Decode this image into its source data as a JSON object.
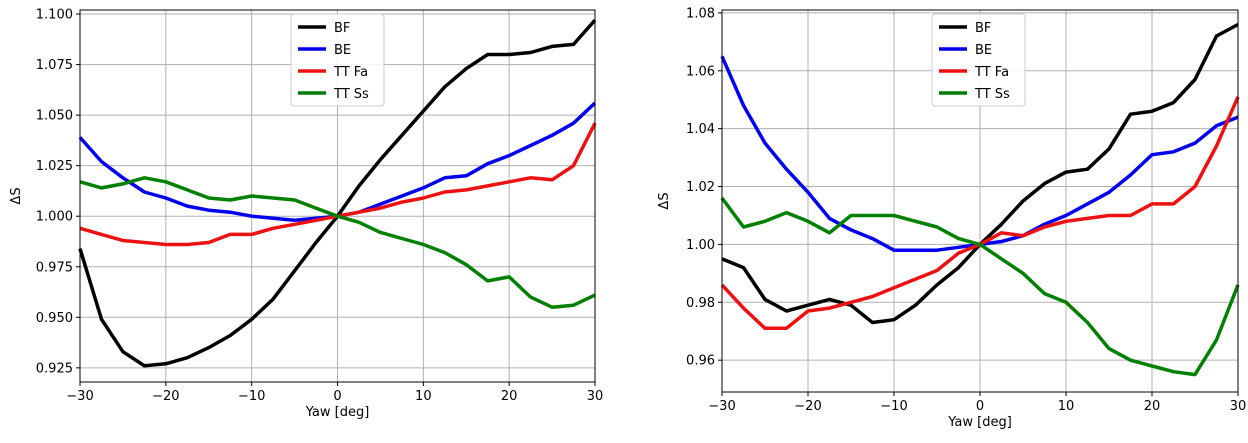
{
  "chart_data": [
    {
      "type": "line",
      "xlabel": "Yaw [deg]",
      "ylabel": "ΔS",
      "xlim": [
        -30,
        30
      ],
      "ylim": [
        0.918,
        1.102
      ],
      "xticks": [
        -30,
        -20,
        -10,
        0,
        10,
        20,
        30
      ],
      "xtick_labels": [
        "−30",
        "−20",
        "−10",
        "0",
        "10",
        "20",
        "30"
      ],
      "yticks": [
        0.925,
        0.95,
        0.975,
        1.0,
        1.025,
        1.05,
        1.075,
        1.1
      ],
      "ytick_labels": [
        "0.925",
        "0.950",
        "0.975",
        "1.000",
        "1.025",
        "1.050",
        "1.075",
        "1.100"
      ],
      "grid": true,
      "legend_position": "top-center",
      "x": [
        -30,
        -27.5,
        -25,
        -22.5,
        -20,
        -17.5,
        -15,
        -12.5,
        -10,
        -7.5,
        -5,
        -2.5,
        0,
        2.5,
        5,
        7.5,
        10,
        12.5,
        15,
        17.5,
        20,
        22.5,
        25,
        27.5,
        30
      ],
      "series": [
        {
          "name": "BF",
          "color": "#000000",
          "values": [
            0.984,
            0.949,
            0.933,
            0.926,
            0.927,
            0.93,
            0.935,
            0.941,
            0.949,
            0.959,
            0.973,
            0.987,
            1.0,
            1.015,
            1.028,
            1.04,
            1.052,
            1.064,
            1.073,
            1.08,
            1.08,
            1.081,
            1.084,
            1.085,
            1.097
          ]
        },
        {
          "name": "BE",
          "color": "#0000ee",
          "values": [
            1.039,
            1.027,
            1.019,
            1.012,
            1.009,
            1.005,
            1.003,
            1.002,
            1.0,
            0.999,
            0.998,
            0.999,
            1.0,
            1.002,
            1.006,
            1.01,
            1.014,
            1.019,
            1.02,
            1.026,
            1.03,
            1.035,
            1.04,
            1.046,
            1.056
          ]
        },
        {
          "name": "TT Fa",
          "color": "#ee1111",
          "values": [
            0.994,
            0.991,
            0.988,
            0.987,
            0.986,
            0.986,
            0.987,
            0.991,
            0.991,
            0.994,
            0.996,
            0.998,
            1.0,
            1.002,
            1.004,
            1.007,
            1.009,
            1.012,
            1.013,
            1.015,
            1.017,
            1.019,
            1.018,
            1.025,
            1.046
          ]
        },
        {
          "name": "TT Ss",
          "color": "#008000",
          "values": [
            1.017,
            1.014,
            1.016,
            1.019,
            1.017,
            1.013,
            1.009,
            1.008,
            1.01,
            1.009,
            1.008,
            1.004,
            1.0,
            0.997,
            0.992,
            0.989,
            0.986,
            0.982,
            0.976,
            0.968,
            0.97,
            0.96,
            0.955,
            0.956,
            0.961
          ]
        }
      ]
    },
    {
      "type": "line",
      "xlabel": "Yaw [deg]",
      "ylabel": "ΔS",
      "xlim": [
        -30,
        30
      ],
      "ylim": [
        0.949,
        1.081
      ],
      "xticks": [
        -30,
        -20,
        -10,
        0,
        10,
        20,
        30
      ],
      "xtick_labels": [
        "−30",
        "−20",
        "−10",
        "0",
        "10",
        "20",
        "30"
      ],
      "yticks": [
        0.96,
        0.98,
        1.0,
        1.02,
        1.04,
        1.06,
        1.08
      ],
      "ytick_labels": [
        "0.96",
        "0.98",
        "1.00",
        "1.02",
        "1.04",
        "1.06",
        "1.08"
      ],
      "grid": true,
      "legend_position": "top-center",
      "x": [
        -30,
        -27.5,
        -25,
        -22.5,
        -20,
        -17.5,
        -15,
        -12.5,
        -10,
        -7.5,
        -5,
        -2.5,
        0,
        2.5,
        5,
        7.5,
        10,
        12.5,
        15,
        17.5,
        20,
        22.5,
        25,
        27.5,
        30
      ],
      "series": [
        {
          "name": "BF",
          "color": "#000000",
          "values": [
            0.995,
            0.992,
            0.981,
            0.977,
            0.979,
            0.981,
            0.979,
            0.973,
            0.974,
            0.979,
            0.986,
            0.992,
            1.0,
            1.007,
            1.015,
            1.021,
            1.025,
            1.026,
            1.033,
            1.045,
            1.046,
            1.049,
            1.057,
            1.072,
            1.076
          ]
        },
        {
          "name": "BE",
          "color": "#0000ee",
          "values": [
            1.065,
            1.048,
            1.035,
            1.026,
            1.018,
            1.009,
            1.005,
            1.002,
            0.998,
            0.998,
            0.998,
            0.999,
            1.0,
            1.001,
            1.003,
            1.007,
            1.01,
            1.014,
            1.018,
            1.024,
            1.031,
            1.032,
            1.035,
            1.041,
            1.044
          ]
        },
        {
          "name": "TT Fa",
          "color": "#ee1111",
          "values": [
            0.986,
            0.978,
            0.971,
            0.971,
            0.977,
            0.978,
            0.98,
            0.982,
            0.985,
            0.988,
            0.991,
            0.997,
            1.0,
            1.004,
            1.003,
            1.006,
            1.008,
            1.009,
            1.01,
            1.01,
            1.014,
            1.014,
            1.02,
            1.034,
            1.051
          ]
        },
        {
          "name": "TT Ss",
          "color": "#008000",
          "values": [
            1.016,
            1.006,
            1.008,
            1.011,
            1.008,
            1.004,
            1.01,
            1.01,
            1.01,
            1.008,
            1.006,
            1.002,
            1.0,
            0.995,
            0.99,
            0.983,
            0.98,
            0.973,
            0.964,
            0.96,
            0.958,
            0.956,
            0.955,
            0.967,
            0.986
          ]
        }
      ]
    }
  ]
}
